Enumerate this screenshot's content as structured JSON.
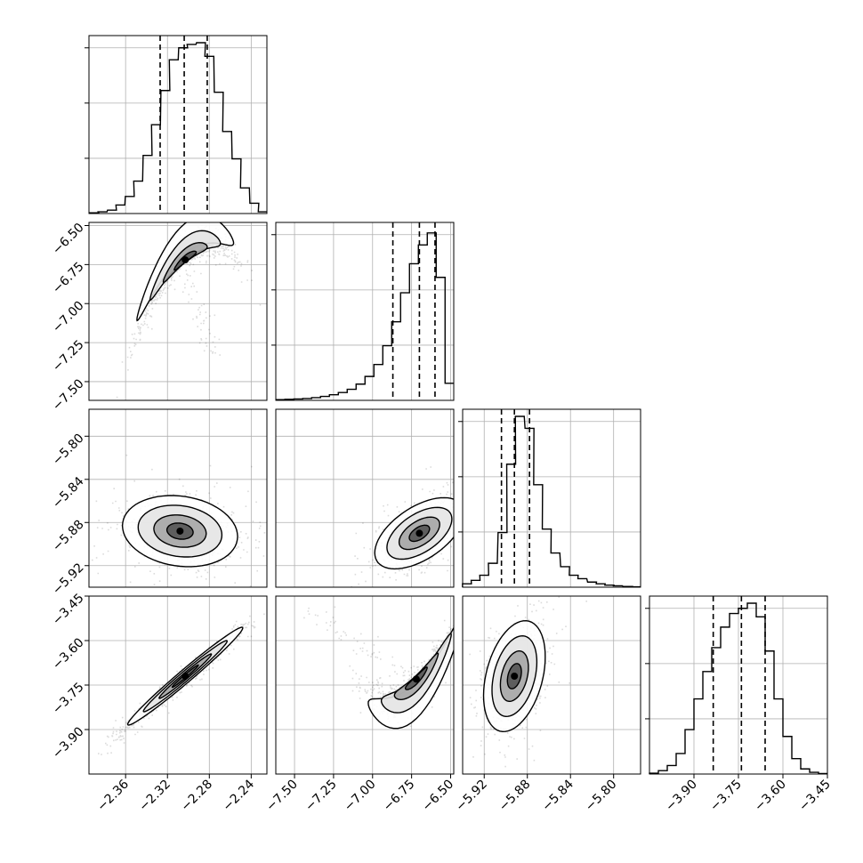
{
  "chart_data": {
    "type": "corner",
    "grid": true,
    "n_params": 4,
    "params": [
      {
        "range": [
          -2.395,
          -2.225
        ],
        "ticks": [
          -2.36,
          -2.32,
          -2.28,
          -2.24
        ],
        "tick_labels": [
          "−2.36",
          "−2.32",
          "−2.28",
          "−2.24"
        ],
        "hist_x": [
          -2.39,
          -2.382,
          -2.373,
          -2.365,
          -2.356,
          -2.348,
          -2.339,
          -2.331,
          -2.322,
          -2.314,
          -2.305,
          -2.297,
          -2.288,
          -2.28,
          -2.271,
          -2.263,
          -2.254,
          -2.246,
          -2.237,
          -2.229
        ],
        "hist_y": [
          0.004,
          0.01,
          0.02,
          0.05,
          0.1,
          0.19,
          0.34,
          0.52,
          0.72,
          0.9,
          0.97,
          0.99,
          1.0,
          0.92,
          0.71,
          0.48,
          0.32,
          0.15,
          0.06,
          0.01
        ],
        "quantiles": [
          -2.327,
          -2.304,
          -2.282
        ]
      },
      {
        "range": [
          -7.62,
          -6.48
        ],
        "ticks": [
          -7.5,
          -7.25,
          -7.0,
          -6.75,
          -6.5
        ],
        "tick_labels": [
          "−7.50",
          "−7.25",
          "−7.00",
          "−6.75",
          "−6.50"
        ],
        "hist_x": [
          -7.59,
          -7.533,
          -7.476,
          -7.419,
          -7.362,
          -7.305,
          -7.248,
          -7.191,
          -7.134,
          -7.077,
          -7.02,
          -6.963,
          -6.906,
          -6.849,
          -6.792,
          -6.735,
          -6.678,
          -6.621,
          -6.564,
          -6.507
        ],
        "hist_y": [
          0.004,
          0.006,
          0.008,
          0.011,
          0.016,
          0.023,
          0.033,
          0.046,
          0.065,
          0.095,
          0.14,
          0.21,
          0.32,
          0.46,
          0.63,
          0.8,
          0.91,
          0.98,
          0.72,
          0.1
        ],
        "quantiles": [
          -6.87,
          -6.7,
          -6.6
        ]
      },
      {
        "range": [
          -5.94,
          -5.775
        ],
        "ticks": [
          -5.92,
          -5.88,
          -5.84,
          -5.8
        ],
        "tick_labels": [
          "−5.92",
          "−5.88",
          "−5.84",
          "−5.80"
        ],
        "hist_x": [
          -5.936,
          -5.928,
          -5.92,
          -5.912,
          -5.903,
          -5.895,
          -5.887,
          -5.878,
          -5.87,
          -5.862,
          -5.854,
          -5.845,
          -5.837,
          -5.829,
          -5.82,
          -5.812,
          -5.804,
          -5.796,
          -5.787,
          -5.779
        ],
        "hist_y": [
          0.02,
          0.04,
          0.07,
          0.14,
          0.32,
          0.72,
          1.0,
          0.93,
          0.6,
          0.34,
          0.2,
          0.12,
          0.07,
          0.05,
          0.03,
          0.02,
          0.012,
          0.008,
          0.004,
          0.002
        ],
        "quantiles": [
          -5.904,
          -5.892,
          -5.878
        ]
      },
      {
        "range": [
          -4.05,
          -3.45
        ],
        "ticks": [
          -3.9,
          -3.75,
          -3.6,
          -3.45
        ],
        "tick_labels": [
          "−3.90",
          "−3.75",
          "−3.60",
          "−3.45"
        ],
        "hist_x": [
          -4.035,
          -4.005,
          -3.975,
          -3.945,
          -3.915,
          -3.885,
          -3.855,
          -3.825,
          -3.795,
          -3.765,
          -3.735,
          -3.705,
          -3.675,
          -3.645,
          -3.615,
          -3.585,
          -3.555,
          -3.525,
          -3.495,
          -3.465
        ],
        "hist_y": [
          0.005,
          0.02,
          0.05,
          0.12,
          0.26,
          0.44,
          0.6,
          0.74,
          0.86,
          0.94,
          0.97,
          1.0,
          0.92,
          0.72,
          0.44,
          0.22,
          0.09,
          0.03,
          0.01,
          0.003
        ],
        "quantiles": [
          -3.835,
          -3.74,
          -3.66
        ]
      }
    ],
    "pairs": [
      {
        "row": 1,
        "col": 0,
        "mean": [
          -2.303,
          -6.72
        ],
        "sd": [
          0.021,
          0.12
        ],
        "rho": 0.93,
        "curve": -1.9,
        "tail": [
          -2.275,
          -7.35
        ]
      },
      {
        "row": 2,
        "col": 0,
        "mean": [
          -2.308,
          -5.888
        ],
        "sd": [
          0.025,
          0.015
        ],
        "rho": -0.15,
        "curve": 0,
        "tail": null
      },
      {
        "row": 2,
        "col": 1,
        "mean": [
          -6.7,
          -5.89
        ],
        "sd": [
          0.13,
          0.015
        ],
        "rho": 0.55,
        "curve": 0,
        "tail": null
      },
      {
        "row": 3,
        "col": 0,
        "mean": [
          -2.303,
          -3.72
        ],
        "sd": [
          0.025,
          0.075
        ],
        "rho": 0.985,
        "curve": 0,
        "tail": [
          -2.39,
          -3.98
        ]
      },
      {
        "row": 3,
        "col": 1,
        "mean": [
          -6.72,
          -3.73
        ],
        "sd": [
          0.14,
          0.075
        ],
        "rho": 0.93,
        "curve": 1.6,
        "tail": [
          -7.4,
          -3.5
        ]
      },
      {
        "row": 3,
        "col": 2,
        "mean": [
          -5.892,
          -3.72
        ],
        "sd": [
          0.013,
          0.085
        ],
        "rho": 0.35,
        "curve": 0,
        "tail": null
      }
    ],
    "colors": {
      "line": "#000000",
      "grid": "#b0b0b0",
      "points": "#000000"
    }
  }
}
